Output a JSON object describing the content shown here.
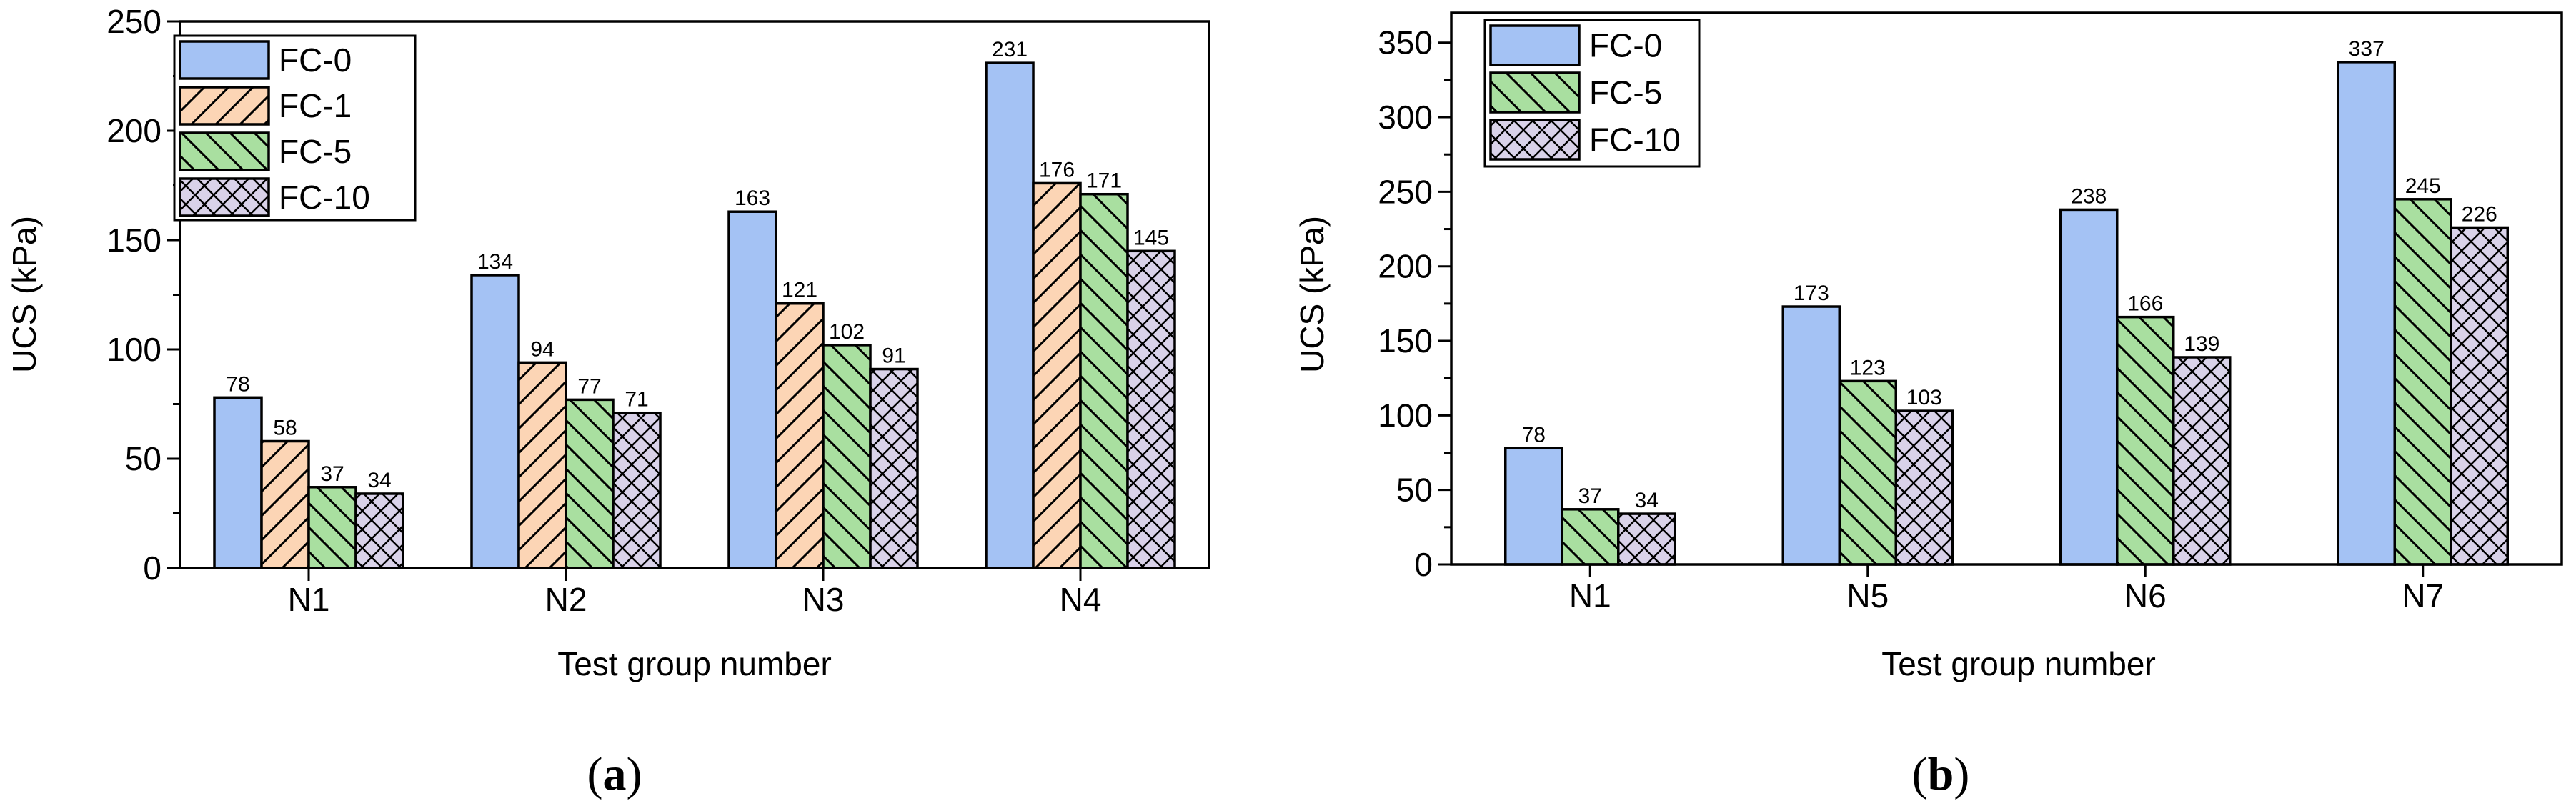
{
  "styles": {
    "FC-0": {
      "fill": "#a4c2f4",
      "pattern": "solid"
    },
    "FC-1": {
      "fill": "#fcd5b5",
      "pattern": "hatch-forward"
    },
    "FC-5": {
      "fill": "#a9dfa0",
      "pattern": "hatch-back"
    },
    "FC-10": {
      "fill": "#d9d2e9",
      "pattern": "cross"
    }
  },
  "chart_data": [
    {
      "type": "bar",
      "caption": "(a)",
      "xlabel": "Test group number",
      "ylabel": "UCS (kPa)",
      "ylim": [
        0,
        250
      ],
      "yticks": [
        0,
        50,
        100,
        150,
        200,
        250
      ],
      "legend_position": "top-left",
      "categories": [
        "N1",
        "N2",
        "N3",
        "N4"
      ],
      "series": [
        {
          "name": "FC-0",
          "values": [
            78,
            134,
            163,
            231
          ]
        },
        {
          "name": "FC-1",
          "values": [
            58,
            94,
            121,
            176
          ]
        },
        {
          "name": "FC-5",
          "values": [
            37,
            77,
            102,
            171
          ]
        },
        {
          "name": "FC-10",
          "values": [
            34,
            71,
            91,
            145
          ]
        }
      ]
    },
    {
      "type": "bar",
      "caption": "(b)",
      "xlabel": "Test group number",
      "ylabel": "UCS (kPa)",
      "ylim": [
        0,
        370
      ],
      "yticks": [
        0,
        50,
        100,
        150,
        200,
        250,
        300,
        350
      ],
      "legend_position": "top-left",
      "categories": [
        "N1",
        "N5",
        "N6",
        "N7"
      ],
      "series": [
        {
          "name": "FC-0",
          "values": [
            78,
            173,
            238,
            337
          ]
        },
        {
          "name": "FC-5",
          "values": [
            37,
            123,
            166,
            245
          ]
        },
        {
          "name": "FC-10",
          "values": [
            34,
            103,
            139,
            226
          ]
        }
      ]
    }
  ]
}
